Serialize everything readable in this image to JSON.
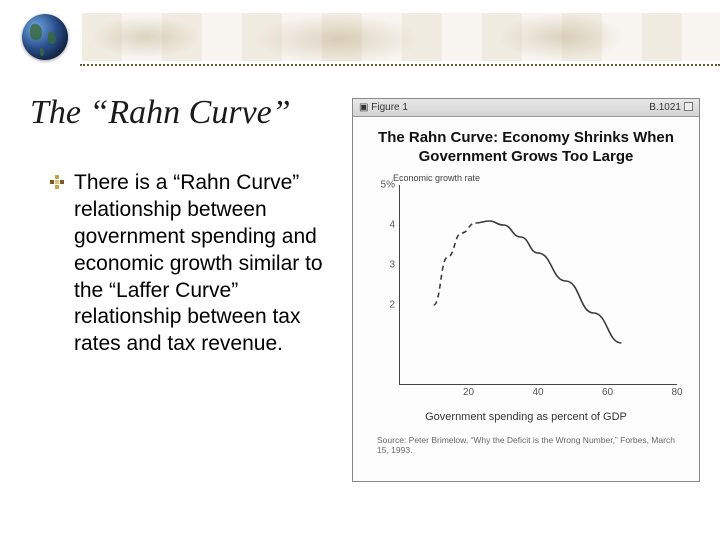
{
  "slide": {
    "title": "The “Rahn Curve”",
    "bullet_text": "There is a “Rahn Curve” relationship between government spending and economic growth similar to the “Laffer Curve” relationship between tax rates and tax revenue."
  },
  "figure": {
    "window_label": "Figure 1",
    "window_code": "B.1021",
    "title_line1": "The Rahn Curve: Economy Shrinks When",
    "title_line2": "Government Grows Too Large",
    "y_axis_label": "Economic growth rate",
    "x_axis_label": "Government spending as percent of GDP",
    "source": "Source: Peter Brimelow, “Why the Deficit is the Wrong Number,” Forbes, March 15, 1993.",
    "chart": {
      "type": "line",
      "ylim": [
        0,
        5
      ],
      "y_ticks": [
        2,
        3,
        4
      ],
      "y_top_label": "5%",
      "xlim": [
        0,
        80
      ],
      "x_ticks": [
        20,
        40,
        60,
        80
      ],
      "curve_points": [
        {
          "x": 10,
          "y": 2.0
        },
        {
          "x": 14,
          "y": 3.2
        },
        {
          "x": 18,
          "y": 3.8
        },
        {
          "x": 22,
          "y": 4.05
        },
        {
          "x": 26,
          "y": 4.1
        },
        {
          "x": 30,
          "y": 4.0
        },
        {
          "x": 35,
          "y": 3.7
        },
        {
          "x": 40,
          "y": 3.3
        },
        {
          "x": 48,
          "y": 2.6
        },
        {
          "x": 56,
          "y": 1.8
        },
        {
          "x": 64,
          "y": 1.05
        }
      ],
      "dashed_until_index": 3,
      "line_color": "#3a3a3a",
      "line_width": 1.6,
      "axis_color": "#444444",
      "background": "#fdfdfd",
      "tick_fontsize": 10,
      "title_fontsize": 15,
      "label_fontsize": 11
    }
  }
}
